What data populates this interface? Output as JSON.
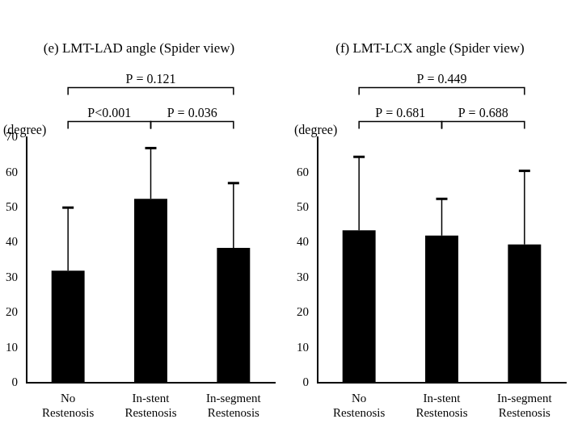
{
  "chart_data": [
    {
      "type": "bar",
      "title": "(e) LMT-LAD angle (Spider view)",
      "y_label": "(degree)",
      "categories": [
        "No Restenosis",
        "In-stent Restenosis",
        "In-segment Restenosis"
      ],
      "values": [
        32,
        52.5,
        38.5
      ],
      "errors": [
        18,
        14.5,
        18.5
      ],
      "color": "#000000",
      "ylim": [
        0,
        70
      ],
      "yticks": [
        0,
        10,
        20,
        30,
        40,
        50,
        60,
        70
      ],
      "grid": false,
      "comparisons": [
        {
          "between": [
            "No Restenosis",
            "In-stent Restenosis"
          ],
          "label": "P<0.001"
        },
        {
          "between": [
            "In-stent Restenosis",
            "In-segment Restenosis"
          ],
          "label": "P = 0.036"
        },
        {
          "between": [
            "No Restenosis",
            "In-segment Restenosis"
          ],
          "label": "P = 0.121"
        }
      ]
    },
    {
      "type": "bar",
      "title": "(f) LMT-LCX angle (Spider view)",
      "y_label": "(degree)",
      "categories": [
        "No Restenosis",
        "In-stent Restenosis",
        "In-segment Restenosis"
      ],
      "values": [
        43.5,
        42,
        39.5
      ],
      "errors": [
        21,
        10.5,
        21
      ],
      "color": "#000000",
      "ylim": [
        0,
        70
      ],
      "yticks": [
        0,
        10,
        20,
        30,
        40,
        50,
        60
      ],
      "grid": false,
      "comparisons": [
        {
          "between": [
            "No Restenosis",
            "In-stent Restenosis"
          ],
          "label": "P = 0.681"
        },
        {
          "between": [
            "In-stent Restenosis",
            "In-segment Restenosis"
          ],
          "label": "P = 0.688"
        },
        {
          "between": [
            "No Restenosis",
            "In-segment Restenosis"
          ],
          "label": "P = 0.449"
        }
      ]
    }
  ]
}
